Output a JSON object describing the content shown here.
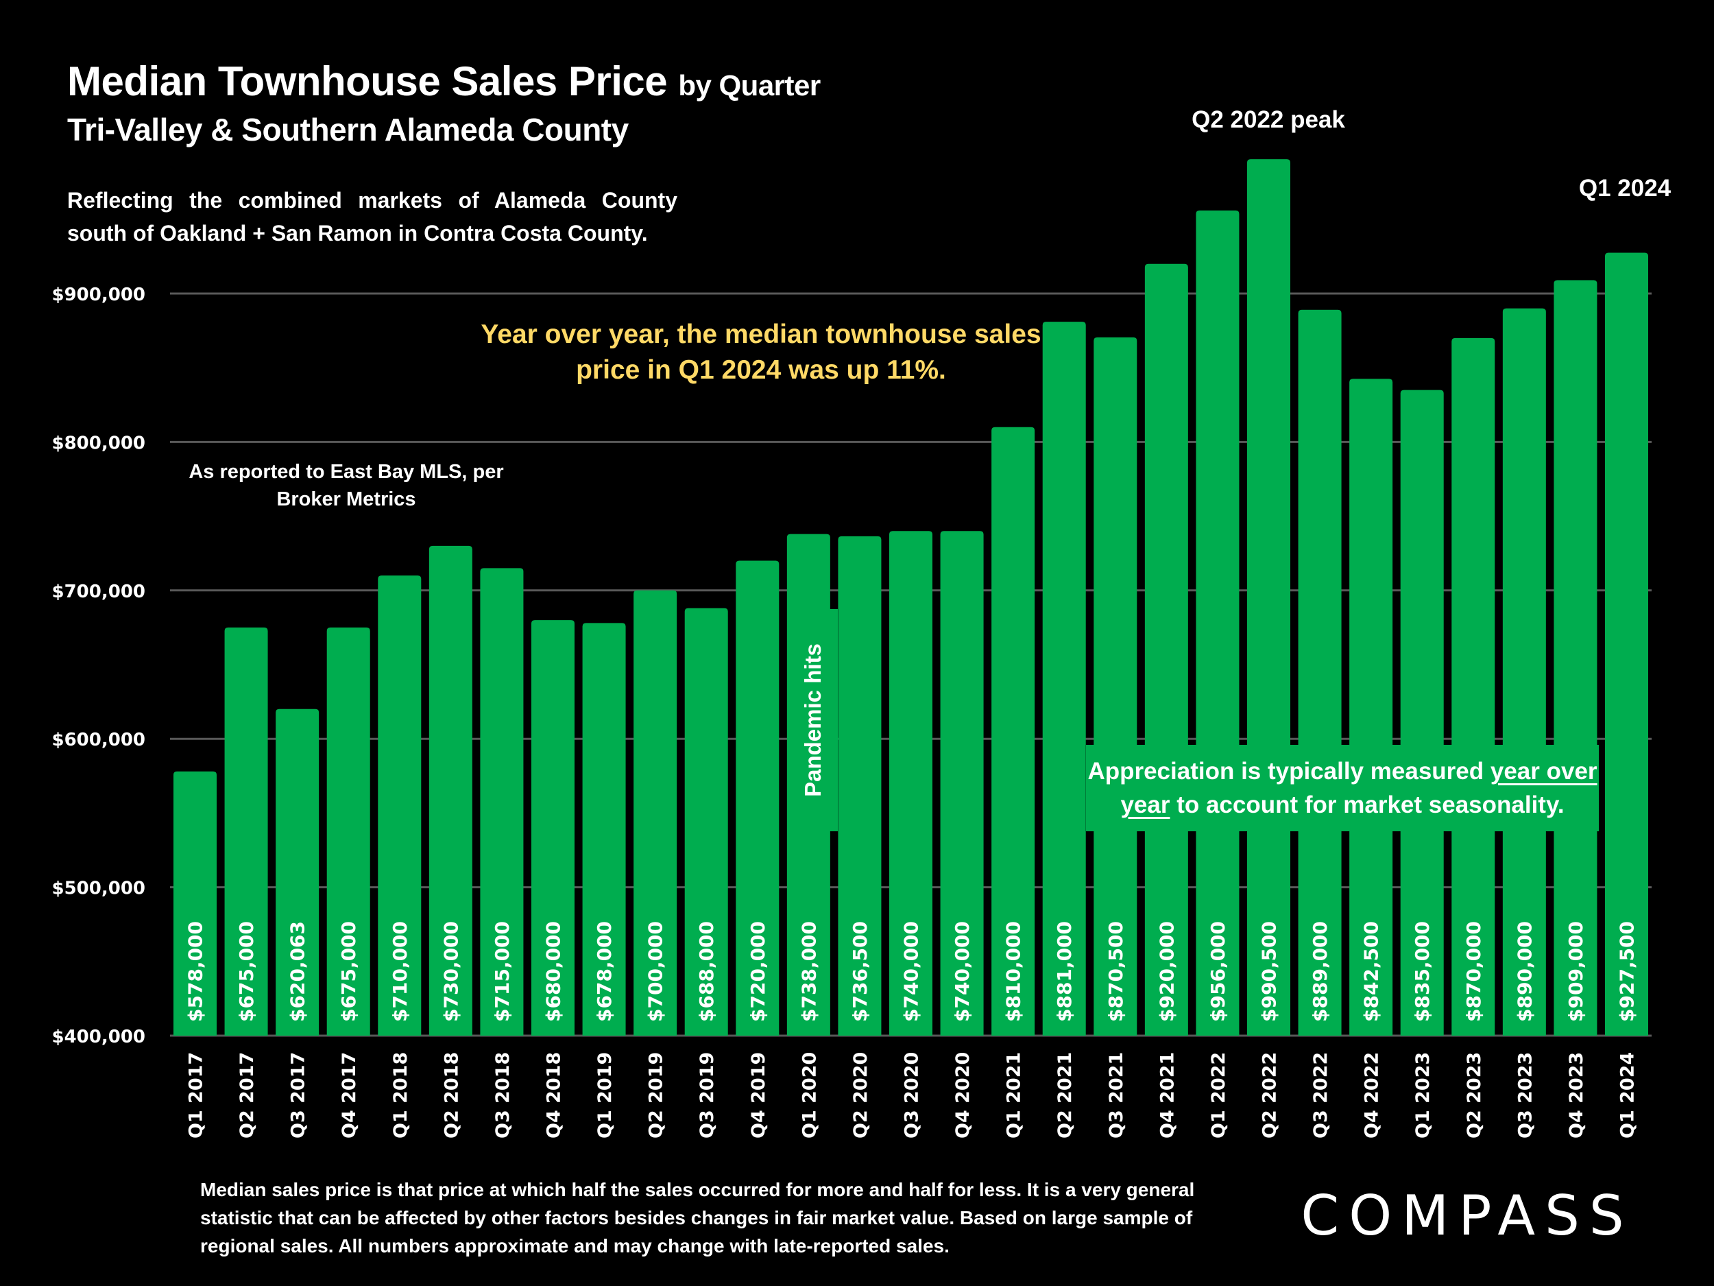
{
  "header": {
    "title_main": "Median Townhouse Sales Price",
    "title_suffix": "by Quarter",
    "subtitle": "Tri-Valley & Southern Alameda County",
    "description": "Reflecting the combined markets of Alameda County south of Oakland + San Ramon in Contra Costa County."
  },
  "annotations": {
    "source": "As reported to East Bay MLS, per Broker Metrics",
    "yoy": "Year over year, the median townhouse sales price in Q1 2024 was up 11%.",
    "peak": "Q2 2022 peak",
    "latest": "Q1 2024",
    "pandemic": "Pandemic hits",
    "appreciation_before": "Appreciation is typically measured ",
    "appreciation_underlined_1": "year over",
    "appreciation_underlined_2": "year",
    "appreciation_after": " to account for market seasonality."
  },
  "footnote": "Median sales price is that price at which half the sales occurred for more and half for less. It is a very general statistic that can be affected by other factors besides changes in fair market value. Based on large sample of regional sales. All numbers approximate and may change with late-reported sales.",
  "brand": {
    "name": "COMPASS"
  },
  "colors": {
    "bar": "#00ad4f",
    "background": "#000000",
    "highlight_text": "#ffd966",
    "gridline": "#595959"
  },
  "chart_data": {
    "type": "bar",
    "title": "Median Townhouse Sales Price by Quarter",
    "subtitle": "Tri-Valley & Southern Alameda County",
    "xlabel": "",
    "ylabel": "",
    "ylim": [
      400000,
      1000000
    ],
    "yticks": [
      400000,
      500000,
      600000,
      700000,
      800000,
      900000
    ],
    "ytick_labels": [
      "$400,000",
      "$500,000",
      "$600,000",
      "$700,000",
      "$800,000",
      "$900,000"
    ],
    "grid": true,
    "categories": [
      "Q1 2017",
      "Q2 2017",
      "Q3 2017",
      "Q4 2017",
      "Q1 2018",
      "Q2 2018",
      "Q3 2018",
      "Q4 2018",
      "Q1 2019",
      "Q2 2019",
      "Q3 2019",
      "Q4 2019",
      "Q1 2020",
      "Q2 2020",
      "Q3 2020",
      "Q4 2020",
      "Q1 2021",
      "Q2 2021",
      "Q3 2021",
      "Q4 2021",
      "Q1 2022",
      "Q2 2022",
      "Q3 2022",
      "Q4 2022",
      "Q1 2023",
      "Q2 2023",
      "Q3 2023",
      "Q4 2023",
      "Q1 2024"
    ],
    "values": [
      578000,
      675000,
      620063,
      675000,
      710000,
      730000,
      715000,
      680000,
      678000,
      700000,
      688000,
      720000,
      738000,
      736500,
      740000,
      740000,
      810000,
      881000,
      870500,
      920000,
      956000,
      990500,
      889000,
      842500,
      835000,
      870000,
      890000,
      909000,
      927500
    ],
    "data_labels": [
      "$578,000",
      "$675,000",
      "$620,063",
      "$675,000",
      "$710,000",
      "$730,000",
      "$715,000",
      "$680,000",
      "$678,000",
      "$700,000",
      "$688,000",
      "$720,000",
      "$738,000",
      "$736,500",
      "$740,000",
      "$740,000",
      "$810,000",
      "$881,000",
      "$870,500",
      "$920,000",
      "$956,000",
      "$990,500",
      "$889,000",
      "$842,500",
      "$835,000",
      "$870,000",
      "$890,000",
      "$909,000",
      "$927,500"
    ]
  }
}
